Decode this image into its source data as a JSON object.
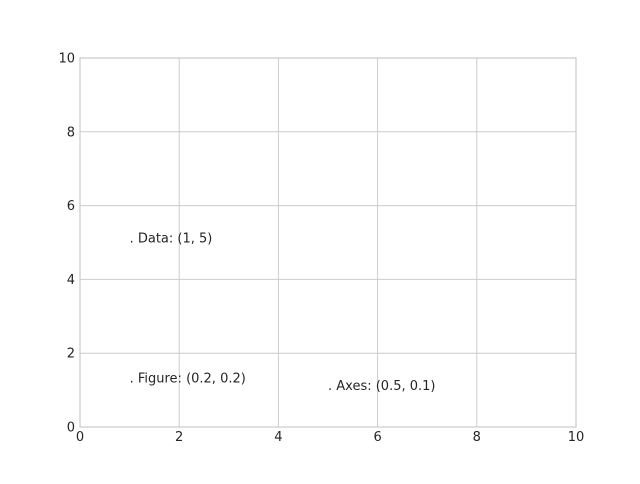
{
  "chart_data": {
    "type": "scatter",
    "title": "",
    "xlabel": "",
    "ylabel": "",
    "xlim": [
      0,
      10
    ],
    "ylim": [
      0,
      10
    ],
    "grid": true,
    "x_ticks": [
      "0",
      "2",
      "4",
      "6",
      "8",
      "10"
    ],
    "y_ticks": [
      "0",
      "2",
      "4",
      "6",
      "8",
      "10"
    ],
    "annotations": [
      {
        "text": ". Data: (1, 5)",
        "x": 1,
        "y": 5
      },
      {
        "text": ". Axes: (0.5, 0.1)",
        "x": 5,
        "y": 1
      },
      {
        "text": ". Figure: (0.2, 0.2)",
        "x": 1,
        "y": 1.2
      }
    ],
    "colors": {
      "grid": "#cccccc",
      "spine": "#cccccc",
      "text": "#262626",
      "background": "#ffffff"
    }
  }
}
